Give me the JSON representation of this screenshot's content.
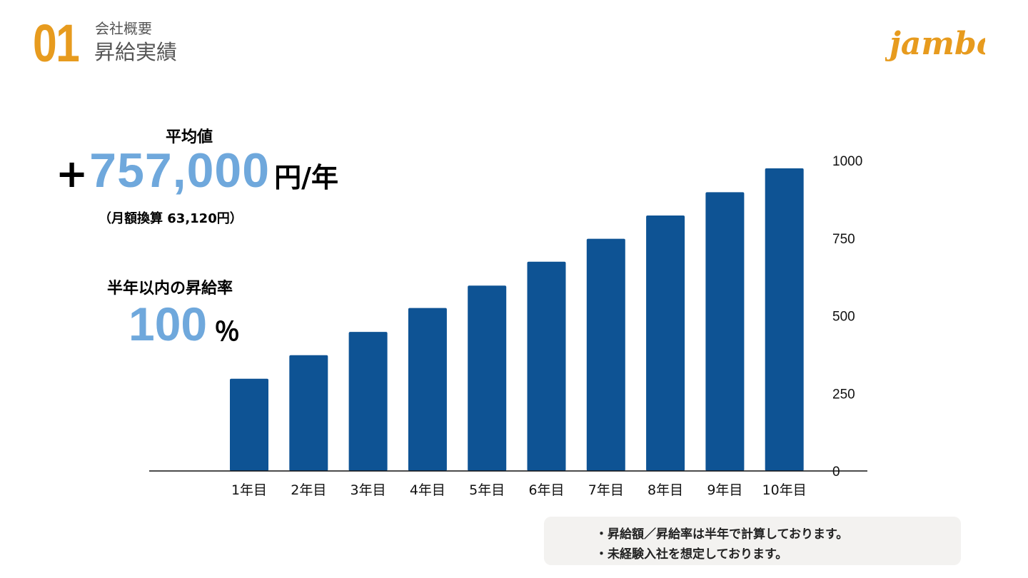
{
  "header": {
    "number": "01",
    "subtitle": "会社概要",
    "title": "昇給実績",
    "logo_text": "jambo"
  },
  "average": {
    "label": "平均値",
    "plus": "+",
    "value": "757,000",
    "unit": "円/年",
    "monthly": "（月額換算  63,120円）"
  },
  "raise_rate": {
    "label": "半年以内の昇給率",
    "value": "100",
    "unit": "％"
  },
  "notes": [
    "・昇給額／昇給率は半年で計算しております。",
    "・未経験入社を想定しております。"
  ],
  "colors": {
    "accent_orange": "#E79B1E",
    "highlight_blue": "#6FA8DC",
    "bar_blue": "#0E5394",
    "heading_gray": "#555555"
  },
  "chart_data": {
    "type": "bar",
    "categories": [
      "1年目",
      "2年目",
      "3年目",
      "4年目",
      "5年目",
      "6年目",
      "7年目",
      "8年目",
      "9年目",
      "10年目"
    ],
    "values": [
      297,
      373,
      448,
      525,
      597,
      674,
      748,
      823,
      898,
      975
    ],
    "ylim": [
      0,
      1000
    ],
    "yticks": [
      0,
      250,
      500,
      750,
      1000
    ],
    "y_axis_side": "right",
    "grid": false,
    "title": "",
    "xlabel": "",
    "ylabel": ""
  }
}
